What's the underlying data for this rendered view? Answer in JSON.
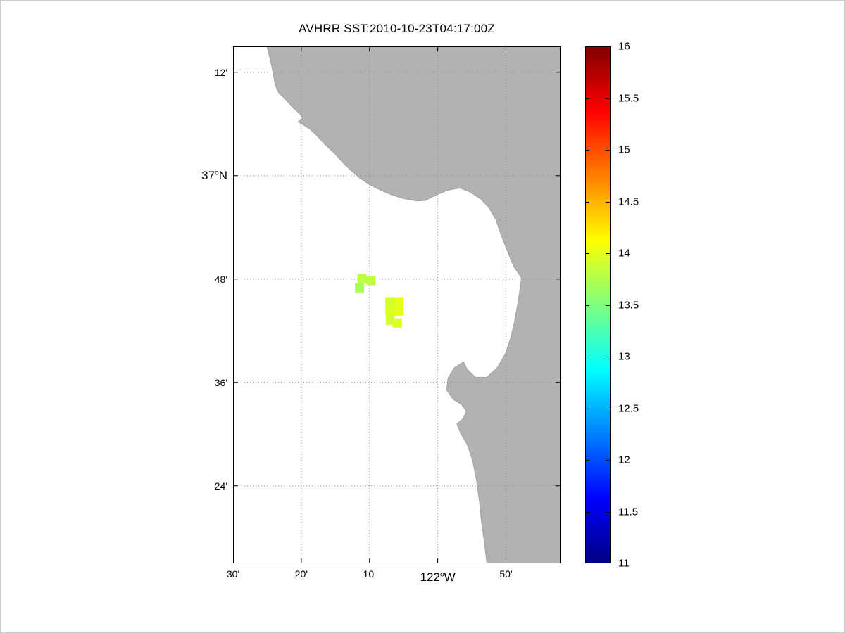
{
  "chart_data": {
    "type": "heatmap",
    "title": "AVHRR SST:2010-10-23T04:17:00Z",
    "projection": {
      "lon_range": [
        -122.5,
        -121.7
      ],
      "lat_range": [
        36.25,
        37.25
      ]
    },
    "x_axis": {
      "ticks": [
        {
          "value": -122.5,
          "label": "30'"
        },
        {
          "value": -122.33333,
          "label": "20'"
        },
        {
          "value": -122.16667,
          "label": "10'"
        },
        {
          "value": -122.0,
          "label": "122^oW",
          "major": true
        },
        {
          "value": -121.83333,
          "label": "50'"
        }
      ]
    },
    "y_axis": {
      "ticks": [
        {
          "value": 37.2,
          "label": "12'"
        },
        {
          "value": 37.0,
          "label": "37^oN",
          "major": true
        },
        {
          "value": 36.8,
          "label": "48'"
        },
        {
          "value": 36.6,
          "label": "36'"
        },
        {
          "value": 36.4,
          "label": "24'"
        }
      ]
    },
    "grid": {
      "style": "dotted",
      "color": "#8c8c8c"
    },
    "land": {
      "color": "#b2b2b2",
      "outline": "#a0a0a0",
      "polygons": [
        [
          [
            -122.417,
            37.25
          ],
          [
            -122.405,
            37.21
          ],
          [
            -122.397,
            37.175
          ],
          [
            -122.388,
            37.16
          ],
          [
            -122.372,
            37.148
          ],
          [
            -122.352,
            37.13
          ],
          [
            -122.337,
            37.12
          ],
          [
            -122.33,
            37.112
          ],
          [
            -122.341,
            37.104
          ],
          [
            -122.328,
            37.098
          ],
          [
            -122.312,
            37.09
          ],
          [
            -122.296,
            37.078
          ],
          [
            -122.275,
            37.06
          ],
          [
            -122.252,
            37.043
          ],
          [
            -122.228,
            37.022
          ],
          [
            -122.207,
            37.007
          ],
          [
            -122.19,
            36.995
          ],
          [
            -122.165,
            36.982
          ],
          [
            -122.14,
            36.972
          ],
          [
            -122.11,
            36.962
          ],
          [
            -122.08,
            36.955
          ],
          [
            -122.05,
            36.951
          ],
          [
            -122.03,
            36.952
          ],
          [
            -122.005,
            36.962
          ],
          [
            -121.975,
            36.972
          ],
          [
            -121.945,
            36.976
          ],
          [
            -121.92,
            36.968
          ],
          [
            -121.895,
            36.955
          ],
          [
            -121.875,
            36.938
          ],
          [
            -121.858,
            36.915
          ],
          [
            -121.845,
            36.885
          ],
          [
            -121.83,
            36.855
          ],
          [
            -121.815,
            36.825
          ],
          [
            -121.795,
            36.802
          ],
          [
            -121.8,
            36.775
          ],
          [
            -121.806,
            36.745
          ],
          [
            -121.813,
            36.715
          ],
          [
            -121.822,
            36.685
          ],
          [
            -121.835,
            36.655
          ],
          [
            -121.855,
            36.628
          ],
          [
            -121.88,
            36.61
          ],
          [
            -121.908,
            36.61
          ],
          [
            -121.928,
            36.625
          ],
          [
            -121.937,
            36.64
          ],
          [
            -121.96,
            36.628
          ],
          [
            -121.975,
            36.608
          ],
          [
            -121.978,
            36.585
          ],
          [
            -121.962,
            36.567
          ],
          [
            -121.943,
            36.558
          ],
          [
            -121.93,
            36.545
          ],
          [
            -121.938,
            36.53
          ],
          [
            -121.953,
            36.52
          ],
          [
            -121.943,
            36.5
          ],
          [
            -121.928,
            36.48
          ],
          [
            -121.915,
            36.45
          ],
          [
            -121.905,
            36.41
          ],
          [
            -121.898,
            36.37
          ],
          [
            -121.893,
            36.33
          ],
          [
            -121.886,
            36.29
          ],
          [
            -121.88,
            36.25
          ],
          [
            -121.7,
            36.25
          ],
          [
            -121.7,
            37.25
          ]
        ]
      ]
    },
    "sst_cells": {
      "cell_size_deg": [
        0.022,
        0.018
      ],
      "points": [
        {
          "lon": -122.196,
          "lat": 36.81,
          "sst": 13.8
        },
        {
          "lon": -122.174,
          "lat": 36.806,
          "sst": 13.8
        },
        {
          "lon": -122.202,
          "lat": 36.792,
          "sst": 13.7
        },
        {
          "lon": -122.128,
          "lat": 36.765,
          "sst": 13.9
        },
        {
          "lon": -122.106,
          "lat": 36.765,
          "sst": 14.0
        },
        {
          "lon": -122.128,
          "lat": 36.747,
          "sst": 13.95
        },
        {
          "lon": -122.106,
          "lat": 36.747,
          "sst": 14.0
        },
        {
          "lon": -122.127,
          "lat": 36.729,
          "sst": 13.9
        },
        {
          "lon": -122.11,
          "lat": 36.724,
          "sst": 13.95
        }
      ]
    },
    "colorbar": {
      "min": 11,
      "max": 16,
      "colormap": "jet",
      "ticks": [
        11,
        11.5,
        12,
        12.5,
        13,
        13.5,
        14,
        14.5,
        15,
        15.5,
        16
      ]
    }
  }
}
